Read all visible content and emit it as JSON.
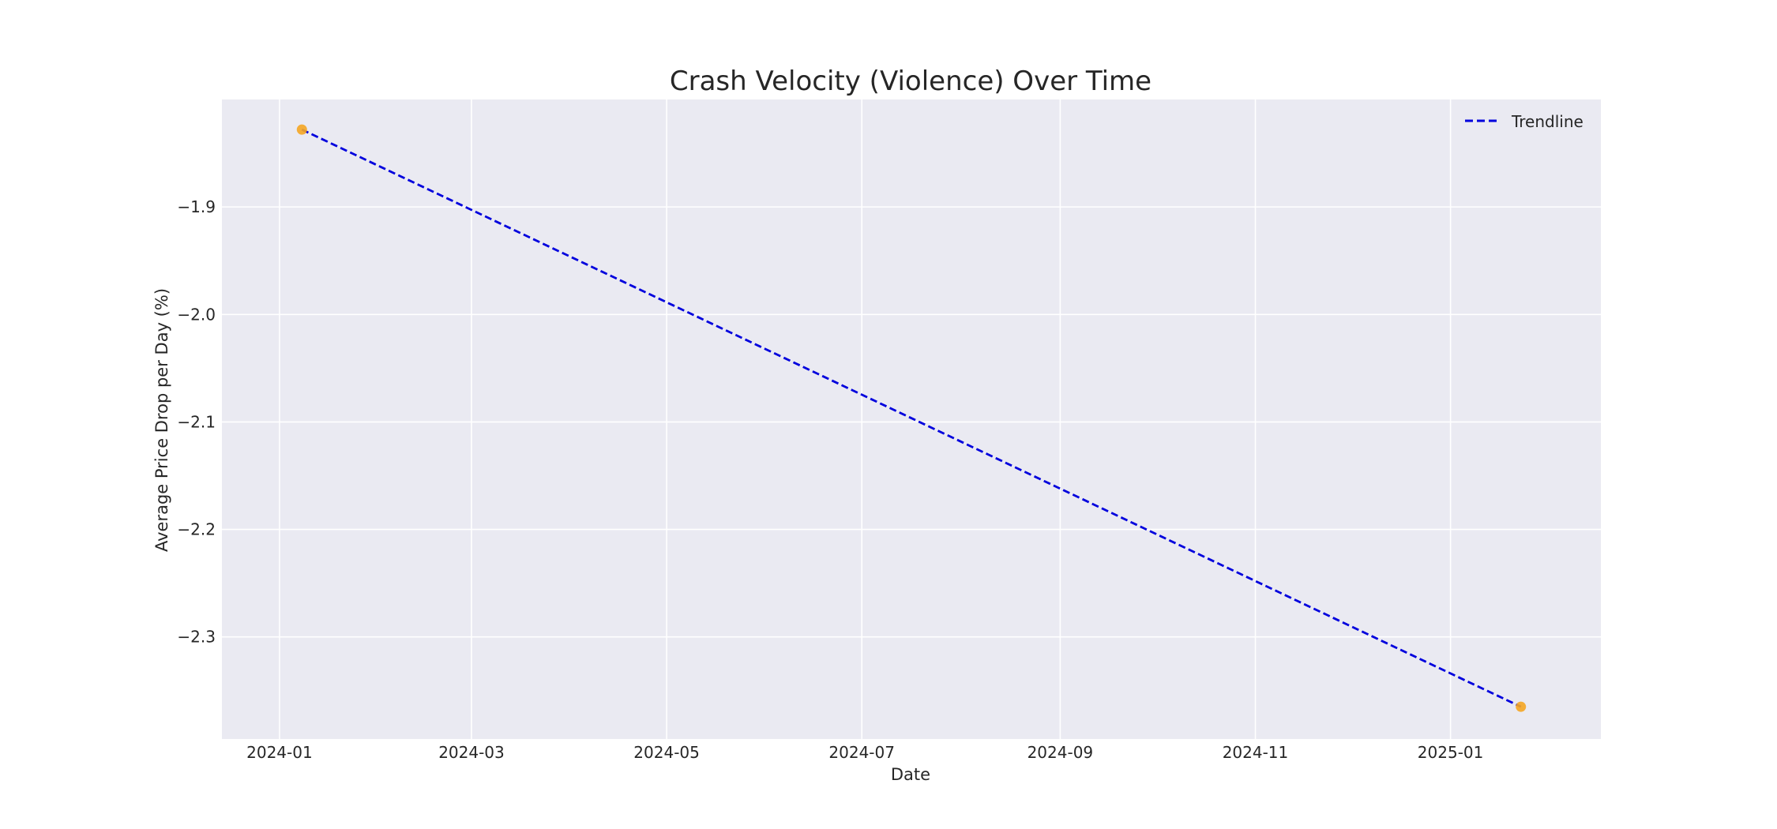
{
  "chart_data": {
    "type": "scatter",
    "title": "Crash Velocity (Violence) Over Time",
    "xlabel": "Date",
    "ylabel": "Average Price Drop per Day (%)",
    "x_axis_type": "date",
    "xlim": [
      "2023-12-14",
      "2025-02-17"
    ],
    "ylim": [
      -2.395,
      -1.8
    ],
    "x_ticks": [
      "2024-01",
      "2024-03",
      "2024-05",
      "2024-07",
      "2024-09",
      "2024-11",
      "2025-01"
    ],
    "x_tick_dates": [
      "2024-01-01",
      "2024-03-01",
      "2024-05-01",
      "2024-07-01",
      "2024-09-01",
      "2024-11-01",
      "2025-01-01"
    ],
    "y_ticks": [
      -1.9,
      -2.0,
      -2.1,
      -2.2,
      -2.3
    ],
    "y_tick_labels": [
      "−1.9",
      "−2.0",
      "−2.1",
      "−2.2",
      "−2.3"
    ],
    "grid": true,
    "legend_position": "top-right",
    "points": [
      {
        "x": "2024-01-08",
        "y": -1.828
      },
      {
        "x": "2025-01-23",
        "y": -2.365
      }
    ],
    "trendline": {
      "name": "Trendline",
      "x": [
        "2024-01-08",
        "2025-01-23"
      ],
      "y": [
        -1.828,
        -2.365
      ]
    },
    "colors": {
      "points": "#f5a623",
      "trendline": "#0000dd",
      "plot_background": "#eaeaf2",
      "grid": "#ffffff"
    }
  }
}
